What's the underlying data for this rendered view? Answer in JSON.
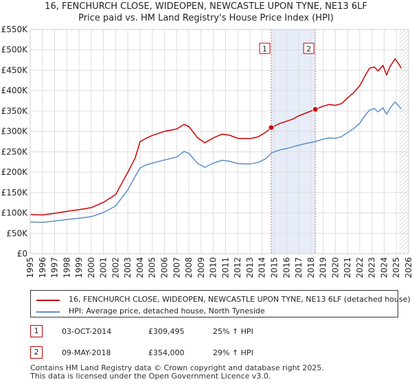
{
  "chart_data": {
    "type": "line",
    "title": "16, FENCHURCH CLOSE, WIDEOPEN, NEWCASTLE UPON TYNE, NE13 6LF",
    "subtitle": "Price paid vs. HM Land Registry's House Price Index (HPI)",
    "xlim": [
      1995,
      2026
    ],
    "ylim": [
      0,
      550000
    ],
    "x_ticks": [
      1995,
      1996,
      1997,
      1998,
      1999,
      2000,
      2001,
      2002,
      2003,
      2004,
      2005,
      2006,
      2007,
      2008,
      2009,
      2010,
      2011,
      2012,
      2013,
      2014,
      2015,
      2016,
      2017,
      2018,
      2019,
      2020,
      2021,
      2022,
      2023,
      2024,
      2025,
      2026
    ],
    "y_ticks": [
      {
        "value": 0,
        "label": "£0"
      },
      {
        "value": 50000,
        "label": "£50K"
      },
      {
        "value": 100000,
        "label": "£100K"
      },
      {
        "value": 150000,
        "label": "£150K"
      },
      {
        "value": 200000,
        "label": "£200K"
      },
      {
        "value": 250000,
        "label": "£250K"
      },
      {
        "value": 300000,
        "label": "£300K"
      },
      {
        "value": 350000,
        "label": "£350K"
      },
      {
        "value": 400000,
        "label": "£400K"
      },
      {
        "value": 450000,
        "label": "£450K"
      },
      {
        "value": 500000,
        "label": "£500K"
      },
      {
        "value": 550000,
        "label": "£550K"
      }
    ],
    "shaded_period": [
      2014.75,
      2018.36
    ],
    "forecast_start": 2025.25,
    "series": [
      {
        "name": "16, FENCHURCH CLOSE, WIDEOPEN, NEWCASTLE UPON TYNE, NE13 6LF (detached house)",
        "color": "#cc0000",
        "points": [
          [
            1995.0,
            96000
          ],
          [
            1996.0,
            95000
          ],
          [
            1997.0,
            99000
          ],
          [
            1998.0,
            104000
          ],
          [
            1999.0,
            108000
          ],
          [
            2000.0,
            113000
          ],
          [
            2001.0,
            126000
          ],
          [
            2002.0,
            145000
          ],
          [
            2003.0,
            200000
          ],
          [
            2003.6,
            235000
          ],
          [
            2004.0,
            275000
          ],
          [
            2004.5,
            283000
          ],
          [
            2005.0,
            290000
          ],
          [
            2006.0,
            300000
          ],
          [
            2007.0,
            306000
          ],
          [
            2007.6,
            317000
          ],
          [
            2008.0,
            312000
          ],
          [
            2008.7,
            285000
          ],
          [
            2009.3,
            272000
          ],
          [
            2010.0,
            284000
          ],
          [
            2010.7,
            293000
          ],
          [
            2011.3,
            291000
          ],
          [
            2012.0,
            283000
          ],
          [
            2013.0,
            282000
          ],
          [
            2013.7,
            287000
          ],
          [
            2014.3,
            298000
          ],
          [
            2014.75,
            309495
          ],
          [
            2015.5,
            320000
          ],
          [
            2016.0,
            325000
          ],
          [
            2016.5,
            330000
          ],
          [
            2017.0,
            338000
          ],
          [
            2017.5,
            344000
          ],
          [
            2018.36,
            354000
          ],
          [
            2019.0,
            362000
          ],
          [
            2019.5,
            366000
          ],
          [
            2020.0,
            364000
          ],
          [
            2020.5,
            368000
          ],
          [
            2021.0,
            382000
          ],
          [
            2021.5,
            395000
          ],
          [
            2022.0,
            412000
          ],
          [
            2022.5,
            440000
          ],
          [
            2022.8,
            455000
          ],
          [
            2023.2,
            458000
          ],
          [
            2023.5,
            448000
          ],
          [
            2023.9,
            462000
          ],
          [
            2024.2,
            438000
          ],
          [
            2024.5,
            460000
          ],
          [
            2024.9,
            478000
          ],
          [
            2025.2,
            465000
          ],
          [
            2025.4,
            455000
          ]
        ]
      },
      {
        "name": "HPI: Average price, detached house, North Tyneside",
        "color": "#5b8ec9",
        "points": [
          [
            1995.0,
            78000
          ],
          [
            1996.0,
            77000
          ],
          [
            1997.0,
            80000
          ],
          [
            1998.0,
            84000
          ],
          [
            1999.0,
            87000
          ],
          [
            2000.0,
            91000
          ],
          [
            2001.0,
            101000
          ],
          [
            2002.0,
            117000
          ],
          [
            2003.0,
            157000
          ],
          [
            2003.6,
            190000
          ],
          [
            2004.0,
            210000
          ],
          [
            2004.5,
            218000
          ],
          [
            2005.0,
            222000
          ],
          [
            2006.0,
            230000
          ],
          [
            2007.0,
            237000
          ],
          [
            2007.6,
            251000
          ],
          [
            2008.0,
            246000
          ],
          [
            2008.7,
            222000
          ],
          [
            2009.3,
            212000
          ],
          [
            2010.0,
            222000
          ],
          [
            2010.7,
            229000
          ],
          [
            2011.3,
            227000
          ],
          [
            2012.0,
            221000
          ],
          [
            2013.0,
            220000
          ],
          [
            2013.7,
            224000
          ],
          [
            2014.3,
            233000
          ],
          [
            2014.75,
            247000
          ],
          [
            2015.5,
            255000
          ],
          [
            2016.0,
            258000
          ],
          [
            2016.5,
            262000
          ],
          [
            2017.0,
            266000
          ],
          [
            2017.5,
            270000
          ],
          [
            2018.36,
            275000
          ],
          [
            2019.0,
            281000
          ],
          [
            2019.5,
            284000
          ],
          [
            2020.0,
            283000
          ],
          [
            2020.5,
            287000
          ],
          [
            2021.0,
            297000
          ],
          [
            2021.5,
            307000
          ],
          [
            2022.0,
            320000
          ],
          [
            2022.5,
            342000
          ],
          [
            2022.8,
            352000
          ],
          [
            2023.2,
            356000
          ],
          [
            2023.5,
            348000
          ],
          [
            2023.9,
            358000
          ],
          [
            2024.2,
            342000
          ],
          [
            2024.5,
            358000
          ],
          [
            2024.9,
            372000
          ],
          [
            2025.2,
            362000
          ],
          [
            2025.4,
            355000
          ]
        ]
      }
    ],
    "sales": [
      {
        "num": "1",
        "x": 2014.75,
        "y": 309495
      },
      {
        "num": "2",
        "x": 2018.36,
        "y": 354000
      }
    ]
  },
  "legend": {
    "property_label": "16, FENCHURCH CLOSE, WIDEOPEN, NEWCASTLE UPON TYNE, NE13 6LF (detached house)",
    "hpi_label": "HPI: Average price, detached house, North Tyneside",
    "property_color": "#cc0000",
    "hpi_color": "#5b8ec9"
  },
  "sales_table": [
    {
      "num": "1",
      "date": "03-OCT-2014",
      "price": "£309,495",
      "hpi": "25% ↑ HPI"
    },
    {
      "num": "2",
      "date": "09-MAY-2018",
      "price": "£354,000",
      "hpi": "29% ↑ HPI"
    }
  ],
  "footer": {
    "line1": "Contains HM Land Registry data © Crown copyright and database right 2025.",
    "line2": "This data is licensed under the Open Government Licence v3.0."
  }
}
